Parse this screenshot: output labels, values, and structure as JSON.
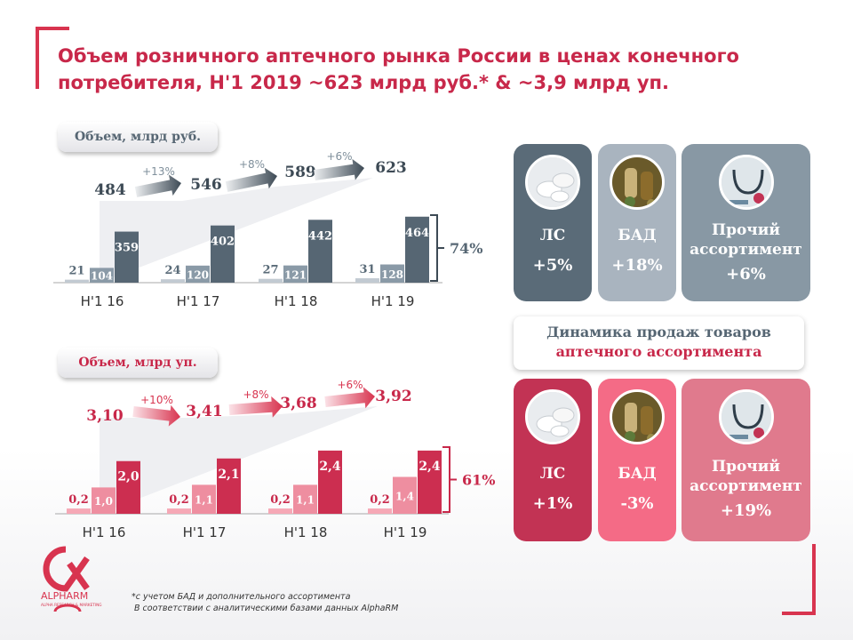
{
  "title": "Объем розничного аптечного рынка России в ценах конечного потребителя, Н'1 2019 ~623 млрд руб.* & ~3,9 млрд уп.",
  "colors": {
    "accent": "#d8344f",
    "dark_slate": "#566673",
    "mid_slate": "#8a9aa7",
    "light_slate": "#a9b3bd",
    "crimson": "#cc2e50",
    "pink": "#ee7d93",
    "light_pink": "#f4a8b8",
    "card_slate_dark": "#5a6b78",
    "card_slate_light": "#a9b4bf",
    "card_slate_mid": "#8898a4",
    "card_crimson": "#c23354",
    "card_pink": "#f46b86",
    "card_rose": "#e07a8d"
  },
  "chart_data": [
    {
      "type": "bar",
      "title": "Объем, млрд руб.",
      "categories": [
        "Н'1 16",
        "Н'1 17",
        "Н'1 18",
        "Н'1 19"
      ],
      "series": [
        {
          "values": [
            21,
            24,
            27,
            31
          ],
          "labels": [
            "21",
            "24",
            "27",
            "31"
          ]
        },
        {
          "values": [
            104,
            120,
            121,
            128
          ],
          "labels": [
            "104",
            "120",
            "121",
            "128"
          ]
        },
        {
          "values": [
            359,
            402,
            442,
            464
          ],
          "labels": [
            "359",
            "402",
            "442",
            "464"
          ]
        }
      ],
      "totals": [
        "484",
        "546",
        "589",
        "623"
      ],
      "growth": [
        "+13%",
        "+8%",
        "+6%"
      ],
      "share_label": "74%",
      "ylim": [
        0,
        500
      ]
    },
    {
      "type": "bar",
      "title": "Объем, млрд уп.",
      "categories": [
        "Н'1 16",
        "Н'1 17",
        "Н'1 18",
        "Н'1 19"
      ],
      "series": [
        {
          "values": [
            0.2,
            0.2,
            0.2,
            0.2
          ],
          "labels": [
            "0,2",
            "0,2",
            "0,2",
            "0,2"
          ]
        },
        {
          "values": [
            1.0,
            1.1,
            1.1,
            1.4
          ],
          "labels": [
            "1,0",
            "1,1",
            "1,1",
            "1,4"
          ]
        },
        {
          "values": [
            2.0,
            2.1,
            2.4,
            2.4
          ],
          "labels": [
            "2,0",
            "2,1",
            "2,4",
            "2,4"
          ]
        }
      ],
      "totals": [
        "3,10",
        "3,41",
        "3,68",
        "3,92"
      ],
      "growth": [
        "+10%",
        "+8%",
        "+6%"
      ],
      "share_label": "61%",
      "ylim": [
        0,
        2.7
      ]
    }
  ],
  "cards_rub": [
    {
      "label": "ЛС",
      "value": "+5%",
      "icon": "pills-photo"
    },
    {
      "label": "БАД",
      "value": "+18%",
      "icon": "supplements-photo"
    },
    {
      "label": "Прочий ассортимент",
      "value": "+6%",
      "icon": "stethoscope-photo"
    }
  ],
  "dynamics_label": {
    "line1": "Динамика продаж товаров",
    "line2": "аптечного ассортимента"
  },
  "cards_units": [
    {
      "label": "ЛС",
      "value": "+1%",
      "icon": "pills-photo"
    },
    {
      "label": "БАД",
      "value": "-3%",
      "icon": "supplements-photo"
    },
    {
      "label": "Прочий ассортимент",
      "value": "+19%",
      "icon": "stethoscope-photo"
    }
  ],
  "footnote": {
    "line1": "*с учетом БАД и дополнительного ассортимента",
    "line2": "В соответствии с аналитическими базами данных AlphaRM"
  },
  "logo": {
    "name": "ALPHARM",
    "tagline": "ALPHA RESEARCH & MARKETING"
  }
}
